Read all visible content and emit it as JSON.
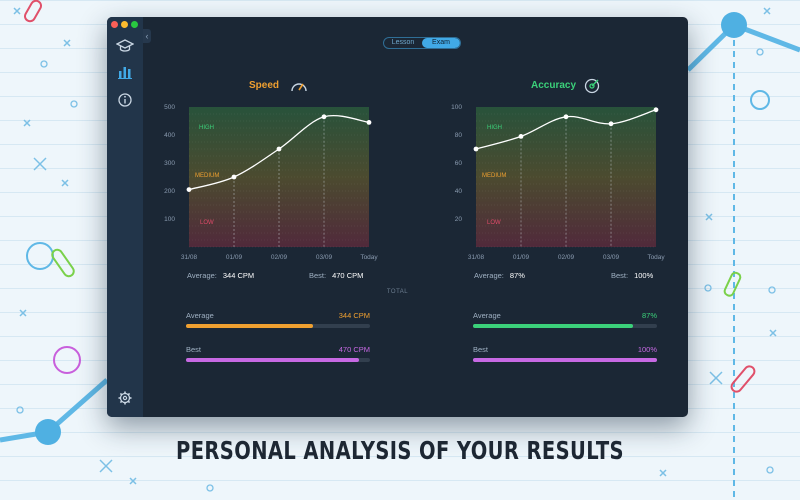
{
  "window": {
    "segments": [
      "Lesson",
      "Exam"
    ],
    "active_segment": "Exam",
    "sidebar_icons": [
      "graduation-cap-icon",
      "bar-chart-icon",
      "info-icon",
      "gear-icon"
    ]
  },
  "speed": {
    "title": "Speed",
    "zones": [
      "HIGH",
      "MEDIUM",
      "LOW"
    ],
    "average_label": "Average:",
    "average_value": "344 CPM",
    "best_label": "Best:",
    "best_value": "470 CPM"
  },
  "accuracy": {
    "title": "Accuracy",
    "zones": [
      "HIGH",
      "MEDIUM",
      "LOW"
    ],
    "average_label": "Average:",
    "average_value": "87%",
    "best_label": "Best:",
    "best_value": "100%"
  },
  "total": {
    "label": "TOTAL",
    "speed": {
      "average": {
        "label": "Average",
        "value": "344 CPM",
        "fraction": 0.69,
        "color": "#f0a030"
      },
      "best": {
        "label": "Best",
        "value": "470 CPM",
        "fraction": 0.94,
        "color": "#c769e3"
      }
    },
    "accuracy": {
      "average": {
        "label": "Average",
        "value": "87%",
        "fraction": 0.87,
        "color": "#3bd17a"
      },
      "best": {
        "label": "Best",
        "value": "100%",
        "fraction": 1.0,
        "color": "#c769e3"
      }
    }
  },
  "banner": "PERSONAL ANALYSIS OF YOUR RESULTS",
  "colors": {
    "speed": "#f0a030",
    "accuracy": "#3bd17a",
    "high": "#3bd17a",
    "medium": "#f0a030",
    "low": "#e04a6a"
  },
  "chart_data": [
    {
      "type": "line",
      "title": "Speed",
      "categories": [
        "31/08",
        "01/09",
        "02/09",
        "03/09",
        "Today"
      ],
      "yticks": [
        100,
        200,
        300,
        400,
        500
      ],
      "ylim": [
        0,
        500
      ],
      "series": [
        {
          "values": [
            205,
            250,
            350,
            465,
            445
          ]
        }
      ],
      "grid": true
    },
    {
      "type": "line",
      "title": "Accuracy",
      "categories": [
        "31/08",
        "01/09",
        "02/09",
        "03/09",
        "Today"
      ],
      "yticks": [
        20,
        40,
        60,
        80,
        100
      ],
      "ylim": [
        0,
        100
      ],
      "series": [
        {
          "values": [
            70,
            79,
            93,
            88,
            98
          ]
        }
      ],
      "grid": true
    }
  ]
}
